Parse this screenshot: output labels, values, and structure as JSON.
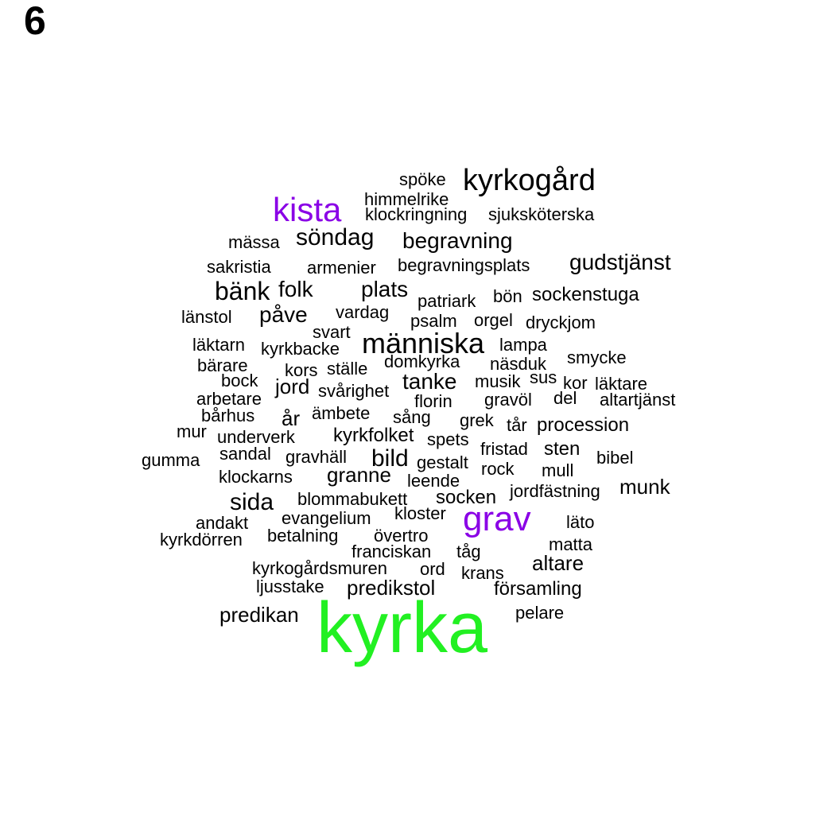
{
  "panel_label": "6",
  "colors": {
    "default": "#000000",
    "purple": "#8a00e6",
    "green": "#22f022"
  },
  "words": [
    {
      "text": "spöke"
    },
    {
      "text": "kyrkogård"
    },
    {
      "text": "himmelrike"
    },
    {
      "text": "kista",
      "color": "purple"
    },
    {
      "text": "klockringning"
    },
    {
      "text": "sjuksköterska"
    },
    {
      "text": "mässa"
    },
    {
      "text": "söndag"
    },
    {
      "text": "begravning"
    },
    {
      "text": "sakristia"
    },
    {
      "text": "armenier"
    },
    {
      "text": "begravningsplats"
    },
    {
      "text": "gudstjänst"
    },
    {
      "text": "bänk"
    },
    {
      "text": "folk"
    },
    {
      "text": "plats"
    },
    {
      "text": "patriark"
    },
    {
      "text": "bön"
    },
    {
      "text": "sockenstuga"
    },
    {
      "text": "länstol"
    },
    {
      "text": "påve"
    },
    {
      "text": "vardag"
    },
    {
      "text": "psalm"
    },
    {
      "text": "orgel"
    },
    {
      "text": "dryckjom"
    },
    {
      "text": "svart"
    },
    {
      "text": "läktarn"
    },
    {
      "text": "kyrkbacke"
    },
    {
      "text": "människa"
    },
    {
      "text": "lampa"
    },
    {
      "text": "smycke"
    },
    {
      "text": "bärare"
    },
    {
      "text": "kors"
    },
    {
      "text": "ställe"
    },
    {
      "text": "domkyrka"
    },
    {
      "text": "näsduk"
    },
    {
      "text": "bock"
    },
    {
      "text": "jord"
    },
    {
      "text": "tanke"
    },
    {
      "text": "musik"
    },
    {
      "text": "sus"
    },
    {
      "text": "kor"
    },
    {
      "text": "läktare"
    },
    {
      "text": "arbetare"
    },
    {
      "text": "svårighet"
    },
    {
      "text": "florin"
    },
    {
      "text": "gravöl"
    },
    {
      "text": "del"
    },
    {
      "text": "altartjänst"
    },
    {
      "text": "bårhus"
    },
    {
      "text": "år"
    },
    {
      "text": "ämbete"
    },
    {
      "text": "sång"
    },
    {
      "text": "grek"
    },
    {
      "text": "tår"
    },
    {
      "text": "procession"
    },
    {
      "text": "mur"
    },
    {
      "text": "underverk"
    },
    {
      "text": "kyrkfolket"
    },
    {
      "text": "spets"
    },
    {
      "text": "fristad"
    },
    {
      "text": "sten"
    },
    {
      "text": "gumma"
    },
    {
      "text": "sandal"
    },
    {
      "text": "gravhäll"
    },
    {
      "text": "bild"
    },
    {
      "text": "gestalt"
    },
    {
      "text": "bibel"
    },
    {
      "text": "rock"
    },
    {
      "text": "mull"
    },
    {
      "text": "klockarns"
    },
    {
      "text": "granne"
    },
    {
      "text": "leende"
    },
    {
      "text": "jordfästning"
    },
    {
      "text": "munk"
    },
    {
      "text": "sida"
    },
    {
      "text": "blommabukett"
    },
    {
      "text": "socken"
    },
    {
      "text": "kloster"
    },
    {
      "text": "grav",
      "color": "purple"
    },
    {
      "text": "evangelium"
    },
    {
      "text": "andakt"
    },
    {
      "text": "läto"
    },
    {
      "text": "kyrkdörren"
    },
    {
      "text": "betalning"
    },
    {
      "text": "övertro"
    },
    {
      "text": "matta"
    },
    {
      "text": "franciskan"
    },
    {
      "text": "tåg"
    },
    {
      "text": "altare"
    },
    {
      "text": "kyrkogårdsmuren"
    },
    {
      "text": "ord"
    },
    {
      "text": "krans"
    },
    {
      "text": "ljusstake"
    },
    {
      "text": "predikstol"
    },
    {
      "text": "församling"
    },
    {
      "text": "predikan"
    },
    {
      "text": "pelare"
    },
    {
      "text": "kyrka",
      "color": "green"
    }
  ]
}
